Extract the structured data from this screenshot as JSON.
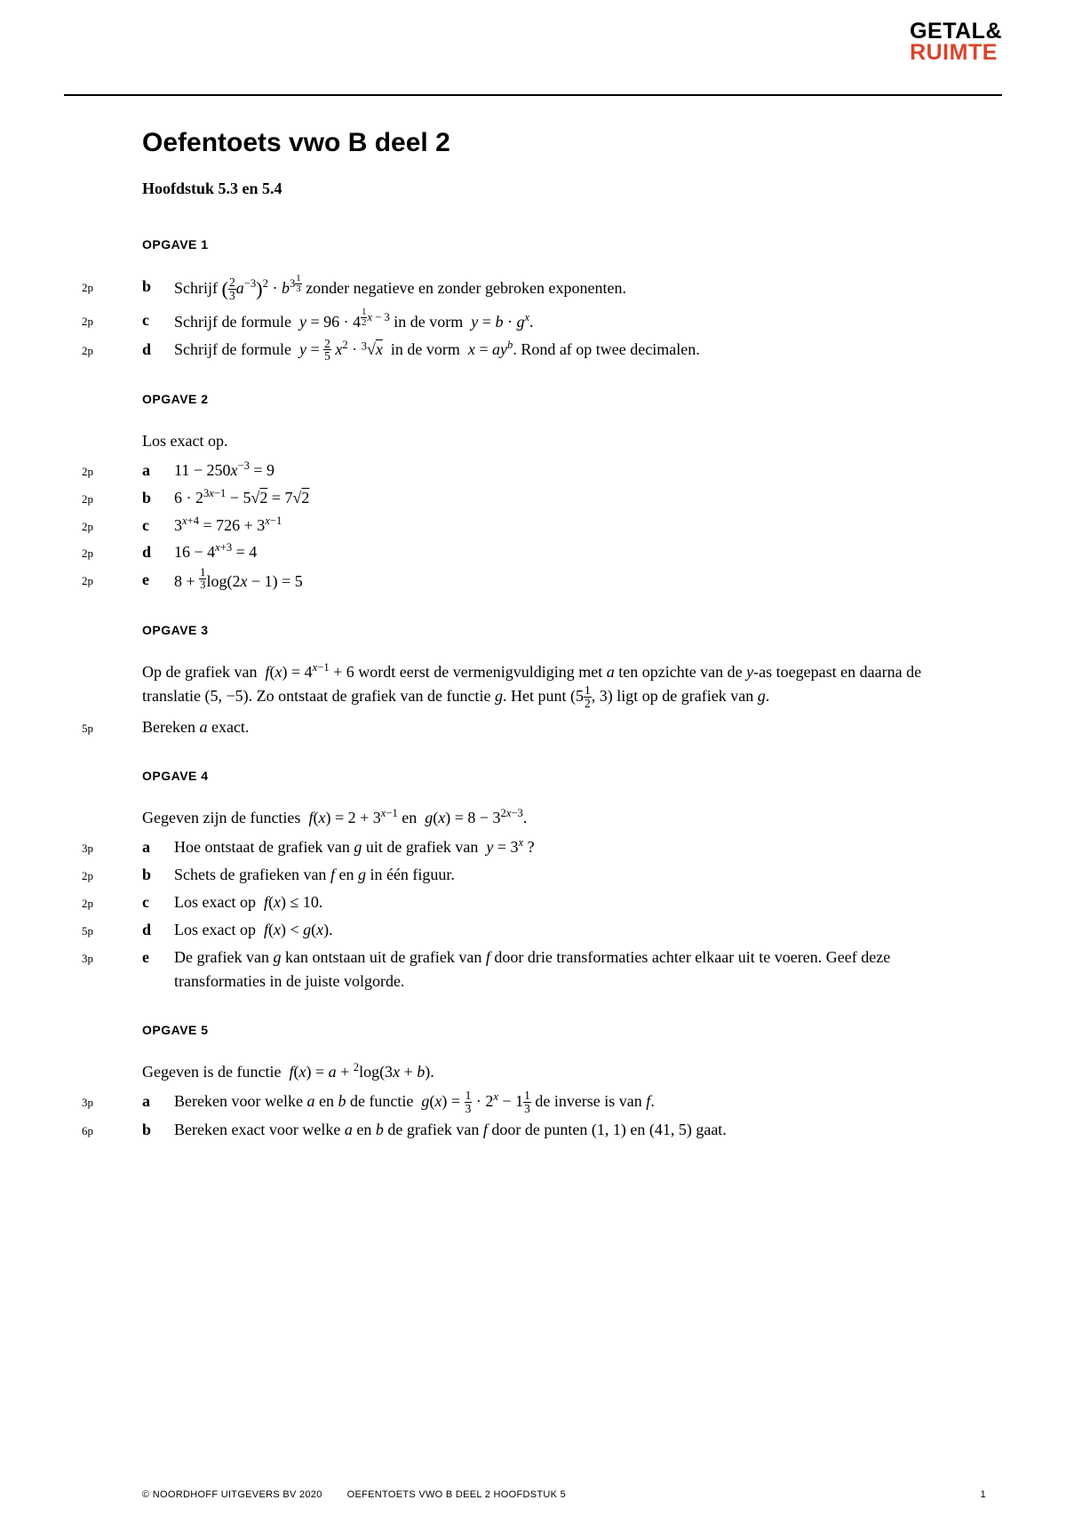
{
  "logo": {
    "line1": "GETAL&",
    "line2": "RUIMTE"
  },
  "title": "Oefentoets vwo B deel 2",
  "subtitle": "Hoofdstuk 5.3 en 5.4",
  "opgaven": [
    {
      "label": "OPGAVE 1",
      "intro": "",
      "items": [
        {
          "points": "2p",
          "letter": "b",
          "html": "Schrijf <span class='paren-big'>(</span><span class='frac'><span class='num'>2</span><span class='den'>3</span></span><span class='math'>a</span><sup>−3</sup><span class='paren-big'>)</span><sup>2</sup> · <span class='math'>b</span><sup>3<span class='frac' style='font-size:0.85em'><span class='num'>1</span><span class='den'>3</span></span></sup> zonder negatieve en zonder gebroken exponenten."
        },
        {
          "points": "2p",
          "letter": "c",
          "html": "Schrijf de formule &nbsp;<span class='math'>y</span> = 96 · 4<sup><span class='frac' style='font-size:0.85em'><span class='num'>1</span><span class='den'>2</span></span><span class='math'>x</span> − 3</sup> in de vorm &nbsp;<span class='math'>y</span> = <span class='math'>b</span> · <span class='math'>g</span><sup><span class='math'>x</span></sup>."
        },
        {
          "points": "2p",
          "letter": "d",
          "html": "Schrijf de formule &nbsp;<span class='math'>y</span> = <span class='frac'><span class='num'>2</span><span class='den'>5</span></span> <span class='math'>x</span><sup>2</sup> · <sup style='font-size:0.7em;vertical-align:0.45em'>3</sup>√<span class='overline'><span class='math'>x</span></span>&nbsp; in de vorm &nbsp;<span class='math'>x</span> = <span class='math'>a</span><span class='math'>y</span><sup><span class='math'>b</span></sup>. Rond af op twee decimalen."
        }
      ]
    },
    {
      "label": "OPGAVE 2",
      "intro": "Los exact op.",
      "items": [
        {
          "points": "2p",
          "letter": "a",
          "html": "11 − 250<span class='math'>x</span><sup>−3</sup> = 9"
        },
        {
          "points": "2p",
          "letter": "b",
          "html": "6 · 2<sup>3<span class='math'>x</span>−1</sup> − 5√<span class='overline'>2</span> = 7√<span class='overline'>2</span>"
        },
        {
          "points": "2p",
          "letter": "c",
          "html": "3<sup><span class='math'>x</span>+4</sup> = 726 + 3<sup><span class='math'>x</span>−1</sup>"
        },
        {
          "points": "2p",
          "letter": "d",
          "html": "16 − 4<sup><span class='math'>x</span>+3</sup> = 4"
        },
        {
          "points": "2p",
          "letter": "e",
          "html": "8 + <sup style='font-size:0.7em;vertical-align:0.4em'><span class='frac' style='font-size:1em'><span class='num'>1</span><span class='den'>3</span></span></sup>log(2<span class='math'>x</span> − 1) = 5"
        }
      ]
    },
    {
      "label": "OPGAVE 3",
      "intro_html": "Op de grafiek van &nbsp;<span class='math'>f</span>(<span class='math'>x</span>) = 4<sup><span class='math'>x</span>−1</sup> + 6 wordt eerst de vermenigvuldiging met <span class='math'>a</span> ten opzichte van de <span class='math'>y</span>-as toegepast en daarna de translatie (5, −5). Zo ontstaat de grafiek van de functie <span class='math'>g</span>. Het punt (5<span class='frac'><span class='num'>1</span><span class='den'>2</span></span>, 3) ligt op de grafiek van <span class='math'>g</span>.",
      "items": [
        {
          "points": "5p",
          "letter": "",
          "html": "Bereken <span class='math'>a</span> exact."
        }
      ]
    },
    {
      "label": "OPGAVE 4",
      "intro_html": "Gegeven zijn de functies &nbsp;<span class='math'>f</span>(<span class='math'>x</span>) = 2 + 3<sup><span class='math'>x</span>−1</sup> en &nbsp;<span class='math'>g</span>(<span class='math'>x</span>) = 8 − 3<sup>2<span class='math'>x</span>−3</sup>.",
      "items": [
        {
          "points": "3p",
          "letter": "a",
          "html": "Hoe ontstaat de grafiek van <span class='math'>g</span> uit de grafiek van &nbsp;<span class='math'>y</span> = 3<sup><span class='math'>x</span></sup> ?"
        },
        {
          "points": "2p",
          "letter": "b",
          "html": "Schets de grafieken van <span class='math'>f</span> en <span class='math'>g</span> in één figuur."
        },
        {
          "points": "2p",
          "letter": "c",
          "html": "Los exact op &nbsp;<span class='math'>f</span>(<span class='math'>x</span>) ≤ 10."
        },
        {
          "points": "5p",
          "letter": "d",
          "html": "Los exact op &nbsp;<span class='math'>f</span>(<span class='math'>x</span>) &lt; <span class='math'>g</span>(<span class='math'>x</span>)."
        },
        {
          "points": "3p",
          "letter": "e",
          "html": "De grafiek van <span class='math'>g</span> kan ontstaan uit de grafiek van <span class='math'>f</span> door drie transformaties achter elkaar uit te voeren. Geef deze transformaties in de juiste volgorde."
        }
      ]
    },
    {
      "label": "OPGAVE 5",
      "intro_html": "Gegeven is de functie &nbsp;<span class='math'>f</span>(<span class='math'>x</span>) = <span class='math'>a</span> + <sup>2</sup>log(3<span class='math'>x</span> + <span class='math'>b</span>).",
      "items": [
        {
          "points": "3p",
          "letter": "a",
          "html": "Bereken voor welke <span class='math'>a</span> en <span class='math'>b</span> de functie &nbsp;<span class='math'>g</span>(<span class='math'>x</span>) = <span class='frac'><span class='num'>1</span><span class='den'>3</span></span> · 2<sup><span class='math'>x</span></sup> − 1<span class='frac'><span class='num'>1</span><span class='den'>3</span></span> de inverse is van <span class='math'>f</span>."
        },
        {
          "points": "6p",
          "letter": "b",
          "html": "Bereken exact voor welke <span class='math'>a</span> en <span class='math'>b</span> de grafiek van <span class='math'>f</span> door de punten (1, 1) en (41, 5) gaat."
        }
      ]
    }
  ],
  "footer": {
    "copyright": "© NOORDHOFF UITGEVERS BV 2020",
    "doc": "OEFENTOETS VWO B DEEL 2 HOOFDSTUK 5",
    "page": "1"
  }
}
